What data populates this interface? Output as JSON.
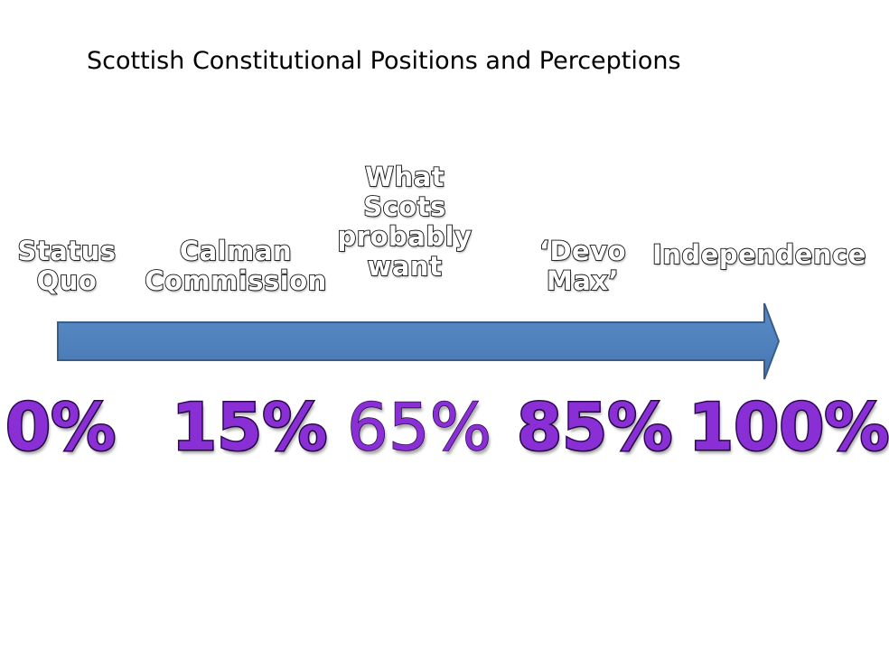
{
  "title": "Scottish Constitutional Positions and Perceptions",
  "colors": {
    "arrow_fill": "#4f81bd",
    "arrow_stroke": "#385d8a",
    "percent_fill": "#8a2fd6",
    "percent_outline": "#2d0b52"
  },
  "positions": [
    {
      "label": "Status\nQuo",
      "percent": "0%"
    },
    {
      "label": "Calman\nCommission",
      "percent": "15%"
    },
    {
      "label": "What\nScots\nprobably\nwant",
      "percent": "65%"
    },
    {
      "label": "‘Devo\nMax’",
      "percent": "85%"
    },
    {
      "label": "Independence",
      "percent": "100%"
    }
  ]
}
